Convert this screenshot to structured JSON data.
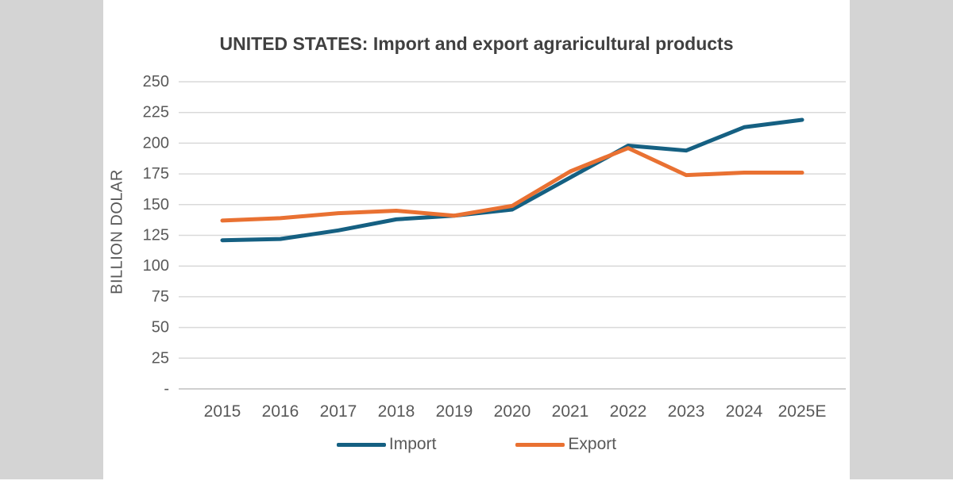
{
  "page": {
    "background_color": "#d4d4d4",
    "card_color": "#ffffff"
  },
  "chart_data": {
    "type": "line",
    "title": "UNITED STATES: Import and export agraricultural products",
    "ylabel": "BILLION DOLAR",
    "xlabel": "",
    "categories": [
      "2015",
      "2016",
      "2017",
      "2018",
      "2019",
      "2020",
      "2021",
      "2022",
      "2023",
      "2024",
      "2025E"
    ],
    "series": [
      {
        "name": "Import",
        "color": "#156082",
        "values": [
          121,
          122,
          129,
          138,
          141,
          146,
          172,
          198,
          194,
          213,
          219
        ]
      },
      {
        "name": "Export",
        "color": "#E97132",
        "values": [
          137,
          139,
          143,
          145,
          141,
          149,
          177,
          196,
          174,
          176,
          176
        ]
      }
    ],
    "ylim": [
      0,
      250
    ],
    "ytick_step": 25,
    "ytick_labels": [
      "-",
      "25",
      "50",
      "75",
      "100",
      "125",
      "150",
      "175",
      "200",
      "225",
      "250"
    ],
    "grid": true,
    "gridline_color": "#d9d9d9",
    "axis_line_color": "#bfbfbf",
    "tick_label_color": "#595959",
    "legend_position": "bottom"
  }
}
